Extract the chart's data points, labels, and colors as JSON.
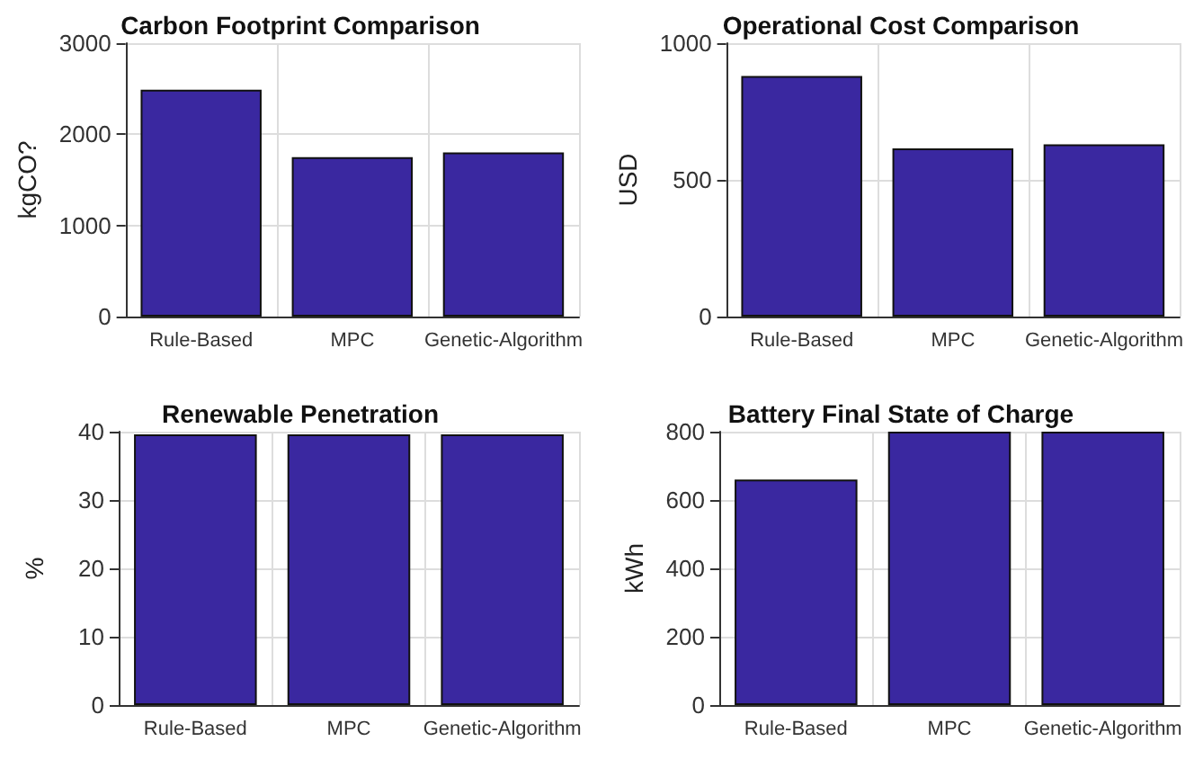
{
  "chart_data": [
    {
      "type": "bar",
      "title": "Carbon Footprint Comparison",
      "ylabel": "kgCO?",
      "categories": [
        "Rule-Based",
        "MPC",
        "Genetic-Algorithm"
      ],
      "values": [
        2490,
        1750,
        1800
      ],
      "color": "#3a28a0",
      "ylim": [
        0,
        3000
      ],
      "yticks": [
        0,
        1000,
        2000,
        3000
      ],
      "grid": true
    },
    {
      "type": "bar",
      "title": "Operational Cost Comparison",
      "ylabel": "USD",
      "categories": [
        "Rule-Based",
        "MPC",
        "Genetic-Algorithm"
      ],
      "values": [
        880,
        615,
        630
      ],
      "color": "#3a28a0",
      "ylim": [
        0,
        1000
      ],
      "yticks": [
        0,
        500,
        1000
      ],
      "grid": true
    },
    {
      "type": "bar",
      "title": "Renewable Penetration",
      "ylabel": "%",
      "categories": [
        "Rule-Based",
        "MPC",
        "Genetic-Algorithm"
      ],
      "values": [
        39.6,
        39.6,
        39.6
      ],
      "color": "#3a28a0",
      "ylim": [
        0,
        40
      ],
      "yticks": [
        0,
        10,
        20,
        30,
        40
      ],
      "grid": true
    },
    {
      "type": "bar",
      "title": "Battery Final State of Charge",
      "ylabel": "kWh",
      "categories": [
        "Rule-Based",
        "MPC",
        "Genetic-Algorithm"
      ],
      "values": [
        660,
        800,
        800
      ],
      "color": "#3a28a0",
      "ylim": [
        0,
        800
      ],
      "yticks": [
        0,
        200,
        400,
        600,
        800
      ],
      "grid": true
    }
  ]
}
